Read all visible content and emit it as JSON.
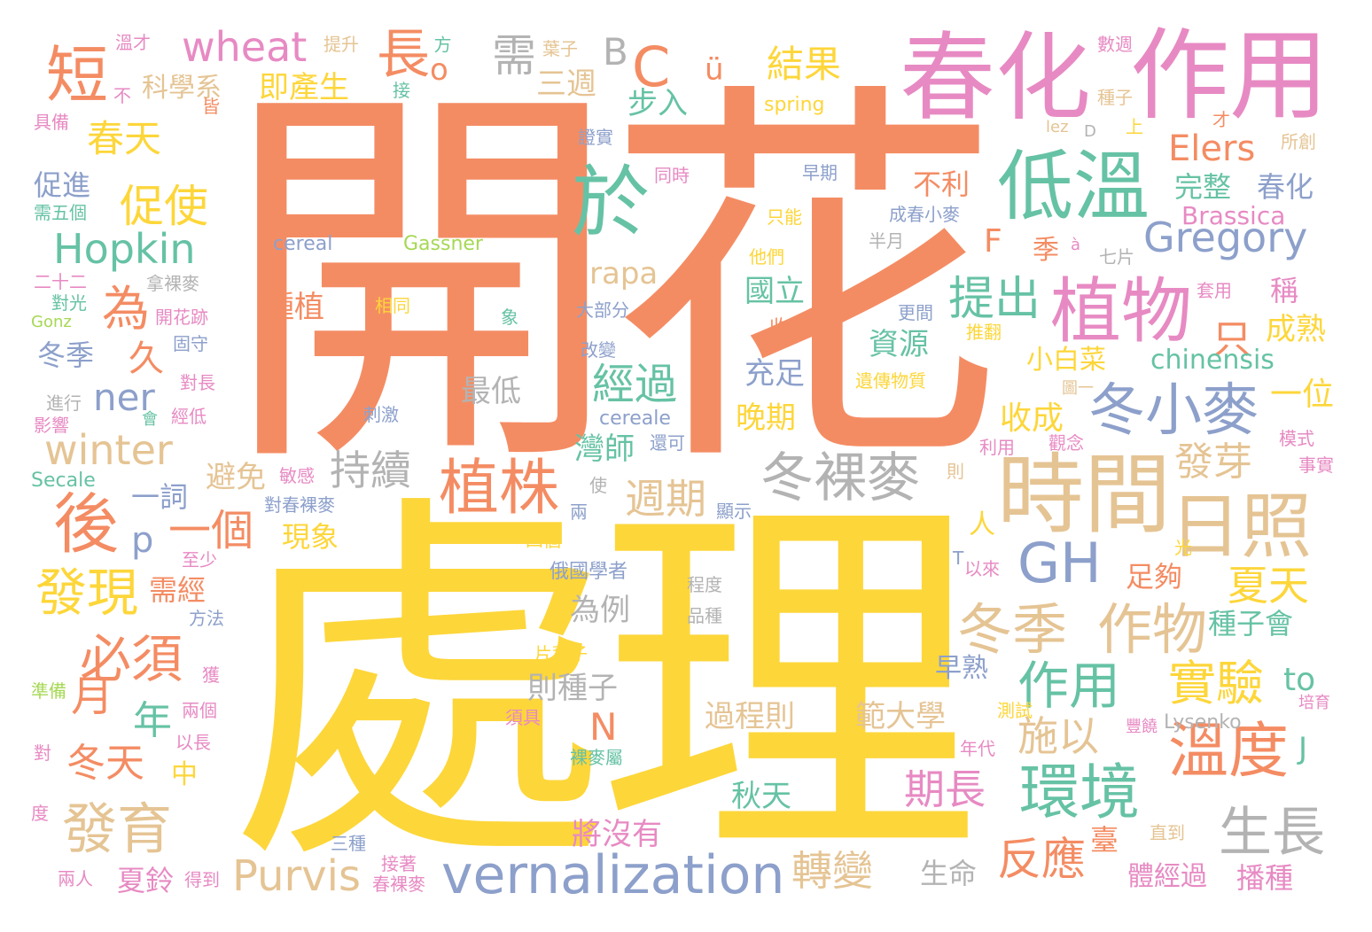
{
  "palette": {
    "orange": "#f48c63",
    "yellow": "#fdd63a",
    "pink": "#e78ac3",
    "green": "#66c2a5",
    "blue": "#8da0cb",
    "tan": "#e5c494",
    "gray": "#b3b3b3",
    "lime": "#a6d854",
    "background": "#ffffff"
  },
  "words": [
    {
      "text": "開花",
      "color": "orange"
    },
    {
      "text": "處理",
      "color": "yellow"
    },
    {
      "text": "春化",
      "color": "pink"
    },
    {
      "text": "作用",
      "color": "pink"
    },
    {
      "text": "時間",
      "color": "tan"
    },
    {
      "text": "低溫",
      "color": "green"
    },
    {
      "text": "植物",
      "color": "pink"
    },
    {
      "text": "日照",
      "color": "tan"
    },
    {
      "text": "於",
      "color": "green"
    },
    {
      "text": "冬裸麥",
      "color": "gray"
    },
    {
      "text": "冬小麥",
      "color": "blue"
    },
    {
      "text": "植株",
      "color": "orange"
    },
    {
      "text": "環境",
      "color": "green"
    },
    {
      "text": "溫度",
      "color": "orange"
    },
    {
      "text": "vernalization",
      "color": "blue"
    },
    {
      "text": "後",
      "color": "orange"
    },
    {
      "text": "短",
      "color": "orange"
    },
    {
      "text": "長",
      "color": "orange"
    },
    {
      "text": "冬季",
      "color": "tan"
    },
    {
      "text": "作物",
      "color": "tan"
    },
    {
      "text": "生長",
      "color": "gray"
    },
    {
      "text": "必須",
      "color": "orange"
    },
    {
      "text": "發現",
      "color": "yellow"
    },
    {
      "text": "發育",
      "color": "tan"
    },
    {
      "text": "作用",
      "color": "green"
    },
    {
      "text": "實驗",
      "color": "yellow"
    },
    {
      "text": "Gregory",
      "color": "blue"
    },
    {
      "text": "Hopkin",
      "color": "green"
    },
    {
      "text": "wheat",
      "color": "pink"
    },
    {
      "text": "winter",
      "color": "tan"
    },
    {
      "text": "Purvis",
      "color": "tan"
    },
    {
      "text": "GH",
      "color": "blue"
    },
    {
      "text": "C",
      "color": "orange"
    },
    {
      "text": "B",
      "color": "gray"
    },
    {
      "text": "ü",
      "color": "orange"
    },
    {
      "text": "為",
      "color": "orange"
    },
    {
      "text": "久",
      "color": "orange"
    },
    {
      "text": "月",
      "color": "orange"
    },
    {
      "text": "年",
      "color": "green"
    },
    {
      "text": "p",
      "color": "blue"
    },
    {
      "text": "一個",
      "color": "orange"
    },
    {
      "text": "ner",
      "color": "blue"
    },
    {
      "text": "促使",
      "color": "yellow"
    },
    {
      "text": "春天",
      "color": "yellow"
    },
    {
      "text": "冬天",
      "color": "orange"
    },
    {
      "text": "提出",
      "color": "green"
    },
    {
      "text": "經過",
      "color": "green"
    },
    {
      "text": "週期",
      "color": "tan"
    },
    {
      "text": "持續",
      "color": "gray"
    },
    {
      "text": "施以",
      "color": "tan"
    },
    {
      "text": "期長",
      "color": "pink"
    },
    {
      "text": "反應",
      "color": "orange"
    },
    {
      "text": "轉變",
      "color": "tan"
    },
    {
      "text": "夏天",
      "color": "yellow"
    },
    {
      "text": "發芽",
      "color": "tan"
    },
    {
      "text": "Elers",
      "color": "orange"
    },
    {
      "text": "結果",
      "color": "yellow"
    },
    {
      "text": "需",
      "color": "gray"
    },
    {
      "text": "F",
      "color": "orange"
    },
    {
      "text": "N",
      "color": "orange"
    },
    {
      "text": "J",
      "color": "green"
    },
    {
      "text": "to",
      "color": "green"
    },
    {
      "text": "只",
      "color": "orange"
    },
    {
      "text": "一位",
      "color": "yellow"
    },
    {
      "text": "收成",
      "color": "yellow"
    },
    {
      "text": "成熟",
      "color": "yellow"
    },
    {
      "text": "人",
      "color": "yellow"
    },
    {
      "text": "季",
      "color": "orange"
    },
    {
      "text": "稱",
      "color": "pink"
    },
    {
      "text": "o",
      "color": "orange"
    },
    {
      "text": "步入",
      "color": "green"
    },
    {
      "text": "即產生",
      "color": "yellow"
    },
    {
      "text": "科學系",
      "color": "tan"
    },
    {
      "text": "三週",
      "color": "tan"
    },
    {
      "text": "不利",
      "color": "orange"
    },
    {
      "text": "完整",
      "color": "green"
    },
    {
      "text": "春化",
      "color": "blue"
    },
    {
      "text": "Brassica",
      "color": "pink"
    },
    {
      "text": "chinensis",
      "color": "green"
    },
    {
      "text": "小白菜",
      "color": "yellow"
    },
    {
      "text": "資源",
      "color": "green"
    },
    {
      "text": "充足",
      "color": "blue"
    },
    {
      "text": "晚期",
      "color": "yellow"
    },
    {
      "text": "國立",
      "color": "green"
    },
    {
      "text": "rapa",
      "color": "tan"
    },
    {
      "text": "種植",
      "color": "orange"
    },
    {
      "text": "灣師",
      "color": "green"
    },
    {
      "text": "cereale",
      "color": "blue"
    },
    {
      "text": "最低",
      "color": "gray"
    },
    {
      "text": "一詞",
      "color": "blue"
    },
    {
      "text": "避免",
      "color": "tan"
    },
    {
      "text": "現象",
      "color": "yellow"
    },
    {
      "text": "需經",
      "color": "orange"
    },
    {
      "text": "為例",
      "color": "gray"
    },
    {
      "text": "則種子",
      "color": "gray"
    },
    {
      "text": "中",
      "color": "yellow"
    },
    {
      "text": "過程則",
      "color": "tan"
    },
    {
      "text": "範大學",
      "color": "tan"
    },
    {
      "text": "早熟",
      "color": "blue"
    },
    {
      "text": "足夠",
      "color": "orange"
    },
    {
      "text": "種子會",
      "color": "green"
    },
    {
      "text": "秋天",
      "color": "green"
    },
    {
      "text": "將沒有",
      "color": "pink"
    },
    {
      "text": "夏鈴",
      "color": "pink"
    },
    {
      "text": "生命",
      "color": "gray"
    },
    {
      "text": "臺",
      "color": "orange"
    },
    {
      "text": "體經過",
      "color": "pink"
    },
    {
      "text": "播種",
      "color": "pink"
    },
    {
      "text": "促進",
      "color": "blue"
    },
    {
      "text": "冬季",
      "color": "blue"
    },
    {
      "text": "spring",
      "color": "yellow"
    },
    {
      "text": "cereal",
      "color": "blue"
    },
    {
      "text": "Gassner",
      "color": "lime"
    },
    {
      "text": "Secale",
      "color": "green"
    },
    {
      "text": "Lysenko",
      "color": "gray"
    },
    {
      "text": "溫才",
      "color": "pink"
    },
    {
      "text": "提升",
      "color": "tan"
    },
    {
      "text": "方",
      "color": "green"
    },
    {
      "text": "葉子",
      "color": "tan"
    },
    {
      "text": "數週",
      "color": "pink"
    },
    {
      "text": "種子",
      "color": "tan"
    },
    {
      "text": "不",
      "color": "pink"
    },
    {
      "text": "皆",
      "color": "orange"
    },
    {
      "text": "接",
      "color": "green"
    },
    {
      "text": "具備",
      "color": "pink"
    },
    {
      "text": "證實",
      "color": "blue"
    },
    {
      "text": "lez",
      "color": "tan"
    },
    {
      "text": "D",
      "color": "gray"
    },
    {
      "text": "上",
      "color": "yellow"
    },
    {
      "text": "才",
      "color": "orange"
    },
    {
      "text": "所創",
      "color": "tan"
    },
    {
      "text": "同時",
      "color": "pink"
    },
    {
      "text": "早期",
      "color": "blue"
    },
    {
      "text": "需五個",
      "color": "green"
    },
    {
      "text": "成春小麥",
      "color": "blue"
    },
    {
      "text": "只能",
      "color": "yellow"
    },
    {
      "text": "半月",
      "color": "gray"
    },
    {
      "text": "à",
      "color": "pink"
    },
    {
      "text": "七片",
      "color": "gray"
    },
    {
      "text": "他們",
      "color": "yellow"
    },
    {
      "text": "二十二",
      "color": "pink"
    },
    {
      "text": "拿裸麥",
      "color": "gray"
    },
    {
      "text": "套用",
      "color": "pink"
    },
    {
      "text": "對光",
      "color": "green"
    },
    {
      "text": "相同",
      "color": "yellow"
    },
    {
      "text": "大部分",
      "color": "blue"
    },
    {
      "text": "更間",
      "color": "blue"
    },
    {
      "text": "Gonz",
      "color": "lime"
    },
    {
      "text": "開花跡",
      "color": "pink"
    },
    {
      "text": "象",
      "color": "green"
    },
    {
      "text": "收",
      "color": "orange"
    },
    {
      "text": "推翻",
      "color": "yellow"
    },
    {
      "text": "固守",
      "color": "blue"
    },
    {
      "text": "改變",
      "color": "blue"
    },
    {
      "text": "對長",
      "color": "pink"
    },
    {
      "text": "遺傳物質",
      "color": "yellow"
    },
    {
      "text": "圖一",
      "color": "tan"
    },
    {
      "text": "進行",
      "color": "gray"
    },
    {
      "text": "經低",
      "color": "pink"
    },
    {
      "text": "刺激",
      "color": "blue"
    },
    {
      "text": "影響",
      "color": "pink"
    },
    {
      "text": "會",
      "color": "green"
    },
    {
      "text": "還可",
      "color": "blue"
    },
    {
      "text": "觀念",
      "color": "pink"
    },
    {
      "text": "利用",
      "color": "pink"
    },
    {
      "text": "模式",
      "color": "pink"
    },
    {
      "text": "事實",
      "color": "pink"
    },
    {
      "text": "敏感",
      "color": "pink"
    },
    {
      "text": "則",
      "color": "tan"
    },
    {
      "text": "使",
      "color": "gray"
    },
    {
      "text": "兩",
      "color": "blue"
    },
    {
      "text": "對春裸麥",
      "color": "blue"
    },
    {
      "text": "顯示",
      "color": "blue"
    },
    {
      "text": "四個",
      "color": "yellow"
    },
    {
      "text": "光",
      "color": "yellow"
    },
    {
      "text": "至少",
      "color": "pink"
    },
    {
      "text": "俄國學者",
      "color": "blue"
    },
    {
      "text": "T",
      "color": "blue"
    },
    {
      "text": "以來",
      "color": "pink"
    },
    {
      "text": "程度",
      "color": "gray"
    },
    {
      "text": "方法",
      "color": "blue"
    },
    {
      "text": "品種",
      "color": "gray"
    },
    {
      "text": "片葉子",
      "color": "yellow"
    },
    {
      "text": "獲",
      "color": "pink"
    },
    {
      "text": "準備",
      "color": "lime"
    },
    {
      "text": "兩個",
      "color": "pink"
    },
    {
      "text": "測試",
      "color": "yellow"
    },
    {
      "text": "以長",
      "color": "pink"
    },
    {
      "text": "須具",
      "color": "pink"
    },
    {
      "text": "培育",
      "color": "pink"
    },
    {
      "text": "豐饒",
      "color": "pink"
    },
    {
      "text": "對",
      "color": "pink"
    },
    {
      "text": "裸麥屬",
      "color": "green"
    },
    {
      "text": "年代",
      "color": "pink"
    },
    {
      "text": "度",
      "color": "pink"
    },
    {
      "text": "三種",
      "color": "blue"
    },
    {
      "text": "接著",
      "color": "pink"
    },
    {
      "text": "直到",
      "color": "tan"
    },
    {
      "text": "兩人",
      "color": "pink"
    },
    {
      "text": "得到",
      "color": "pink"
    },
    {
      "text": "春裸麥",
      "color": "pink"
    }
  ]
}
